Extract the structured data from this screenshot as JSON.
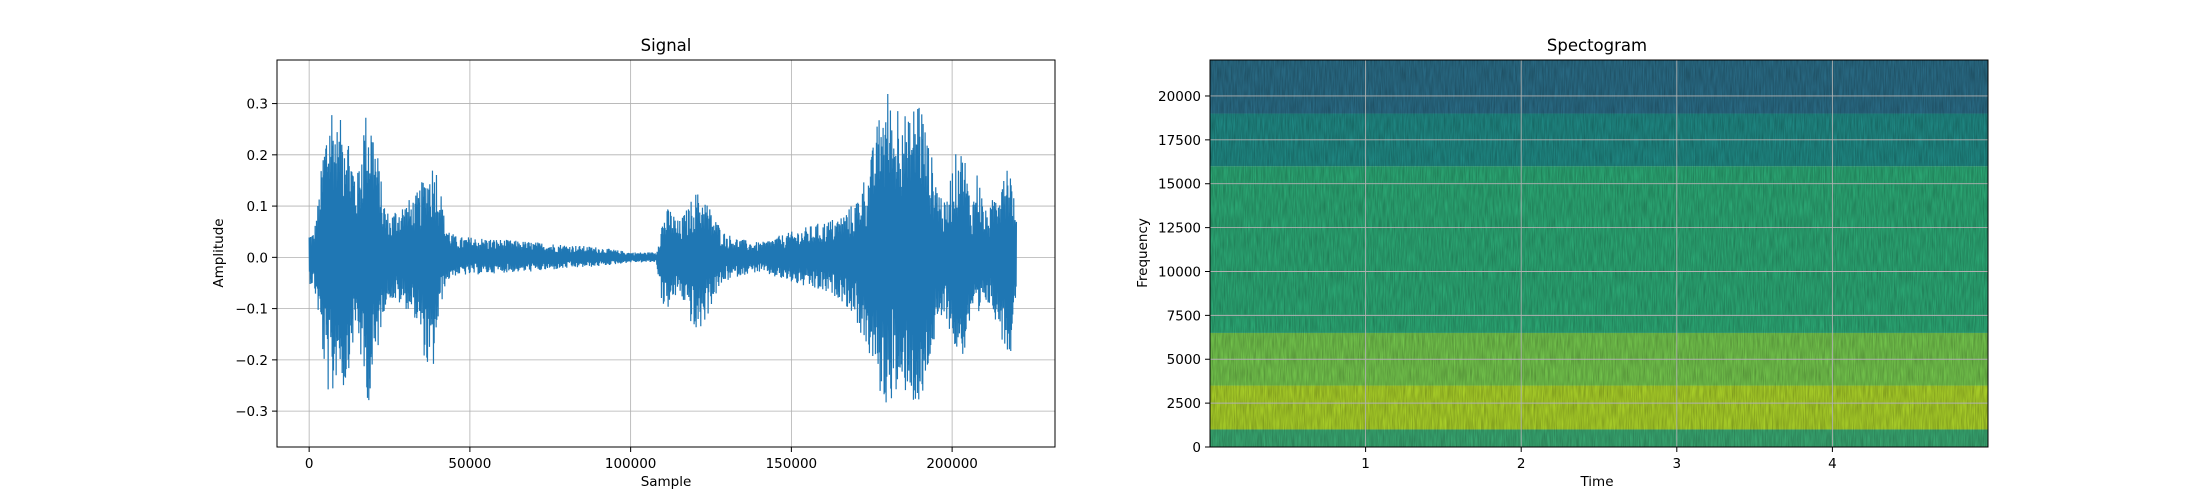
{
  "chart_data": [
    {
      "type": "line",
      "title": "Signal",
      "xlabel": "Sample",
      "ylabel": "Amplitude",
      "xlim": [
        -10000,
        232000
      ],
      "ylim": [
        -0.37,
        0.385
      ],
      "grid": true,
      "line_color": "#1f77b4",
      "x_ticks": [
        0,
        50000,
        100000,
        150000,
        200000
      ],
      "x_tick_labels": [
        "0",
        "50000",
        "100000",
        "150000",
        "200000"
      ],
      "y_ticks": [
        -0.3,
        -0.2,
        -0.1,
        0.0,
        0.1,
        0.2,
        0.3
      ],
      "y_tick_labels": [
        "−0.3",
        "−0.2",
        "−0.1",
        "0.0",
        "0.1",
        "0.2",
        "0.3"
      ],
      "envelope": {
        "x": [
          0,
          1500,
          3000,
          5000,
          7000,
          9000,
          11000,
          13000,
          15000,
          17000,
          19000,
          21000,
          23000,
          25000,
          27000,
          30000,
          33000,
          36000,
          38000,
          40000,
          42000,
          44000,
          46000,
          50000,
          60000,
          70000,
          80000,
          90000,
          95000,
          100000,
          105000,
          108000,
          110000,
          112000,
          115000,
          118000,
          120000,
          123000,
          126000,
          129000,
          132000,
          135000,
          138000,
          141000,
          145000,
          150000,
          155000,
          160000,
          165000,
          170000,
          172000,
          174000,
          176000,
          178000,
          180000,
          182000,
          184000,
          186000,
          188000,
          190000,
          192000,
          194000,
          196000,
          198000,
          200000,
          202000,
          204000,
          206000,
          208000,
          210000,
          212000,
          214000,
          216000,
          218000,
          220000
        ],
        "upper": [
          0.05,
          0.05,
          0.12,
          0.26,
          0.32,
          0.25,
          0.3,
          0.22,
          0.16,
          0.28,
          0.3,
          0.22,
          0.12,
          0.08,
          0.1,
          0.11,
          0.12,
          0.16,
          0.19,
          0.18,
          0.08,
          0.05,
          0.04,
          0.04,
          0.035,
          0.03,
          0.025,
          0.02,
          0.015,
          0.01,
          0.01,
          0.01,
          0.08,
          0.1,
          0.07,
          0.1,
          0.13,
          0.12,
          0.08,
          0.05,
          0.04,
          0.035,
          0.03,
          0.03,
          0.04,
          0.05,
          0.06,
          0.07,
          0.08,
          0.11,
          0.15,
          0.17,
          0.24,
          0.3,
          0.33,
          0.28,
          0.35,
          0.26,
          0.3,
          0.34,
          0.24,
          0.19,
          0.14,
          0.1,
          0.18,
          0.22,
          0.2,
          0.1,
          0.18,
          0.09,
          0.1,
          0.15,
          0.2,
          0.19,
          0.07
        ],
        "lower": [
          -0.05,
          -0.06,
          -0.12,
          -0.24,
          -0.3,
          -0.21,
          -0.27,
          -0.19,
          -0.14,
          -0.26,
          -0.29,
          -0.2,
          -0.11,
          -0.08,
          -0.09,
          -0.1,
          -0.12,
          -0.2,
          -0.26,
          -0.14,
          -0.06,
          -0.04,
          -0.035,
          -0.035,
          -0.03,
          -0.028,
          -0.022,
          -0.018,
          -0.014,
          -0.01,
          -0.01,
          -0.01,
          -0.1,
          -0.1,
          -0.07,
          -0.11,
          -0.16,
          -0.13,
          -0.08,
          -0.05,
          -0.04,
          -0.035,
          -0.03,
          -0.03,
          -0.04,
          -0.05,
          -0.06,
          -0.07,
          -0.08,
          -0.12,
          -0.16,
          -0.19,
          -0.23,
          -0.28,
          -0.3,
          -0.26,
          -0.32,
          -0.25,
          -0.29,
          -0.34,
          -0.24,
          -0.18,
          -0.15,
          -0.11,
          -0.17,
          -0.2,
          -0.19,
          -0.11,
          -0.15,
          -0.09,
          -0.1,
          -0.13,
          -0.17,
          -0.2,
          -0.06
        ]
      }
    },
    {
      "type": "heatmap",
      "title": "Spectogram",
      "xlabel": "Time",
      "ylabel": "Frequency",
      "xlim": [
        0,
        5.0
      ],
      "ylim": [
        0,
        22050
      ],
      "grid": true,
      "colormap": "viridis",
      "x_ticks": [
        1,
        2,
        3,
        4
      ],
      "x_tick_labels": [
        "1",
        "2",
        "3",
        "4"
      ],
      "y_ticks": [
        0,
        2500,
        5000,
        7500,
        10000,
        12500,
        15000,
        17500,
        20000
      ],
      "y_tick_labels": [
        "0",
        "2500",
        "5000",
        "7500",
        "10000",
        "12500",
        "15000",
        "17500",
        "20000"
      ],
      "band_colors": [
        {
          "from": 0,
          "to": 1000,
          "color": "#3cb379"
        },
        {
          "from": 1000,
          "to": 3500,
          "color": "#b5de2b"
        },
        {
          "from": 3500,
          "to": 6500,
          "color": "#7ad151"
        },
        {
          "from": 6500,
          "to": 16000,
          "color": "#2eb37c"
        },
        {
          "from": 16000,
          "to": 19000,
          "color": "#21918c"
        },
        {
          "from": 19000,
          "to": 22050,
          "color": "#2c728e"
        }
      ]
    }
  ]
}
